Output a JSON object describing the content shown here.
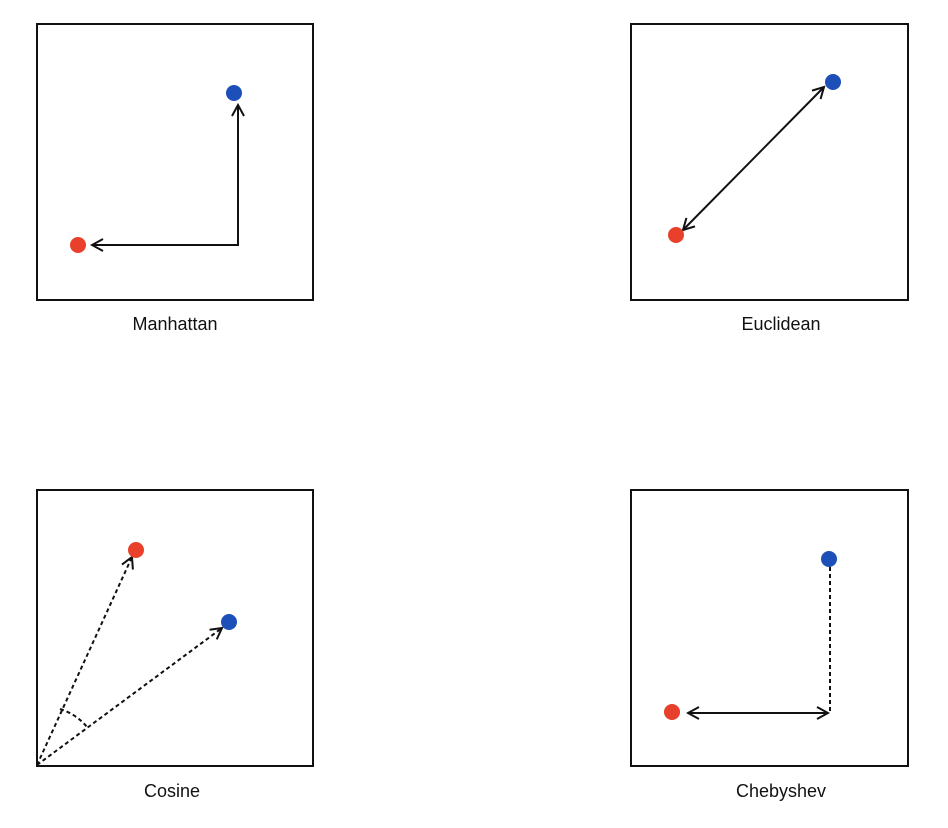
{
  "colors": {
    "point_a": "#e8402a",
    "point_b": "#1c4fb8",
    "line": "#111111",
    "frame": "#111111"
  },
  "panels": {
    "manhattan": {
      "label": "Manhattan"
    },
    "euclidean": {
      "label": "Euclidean"
    },
    "cosine": {
      "label": "Cosine"
    },
    "chebyshev": {
      "label": "Chebyshev"
    }
  }
}
